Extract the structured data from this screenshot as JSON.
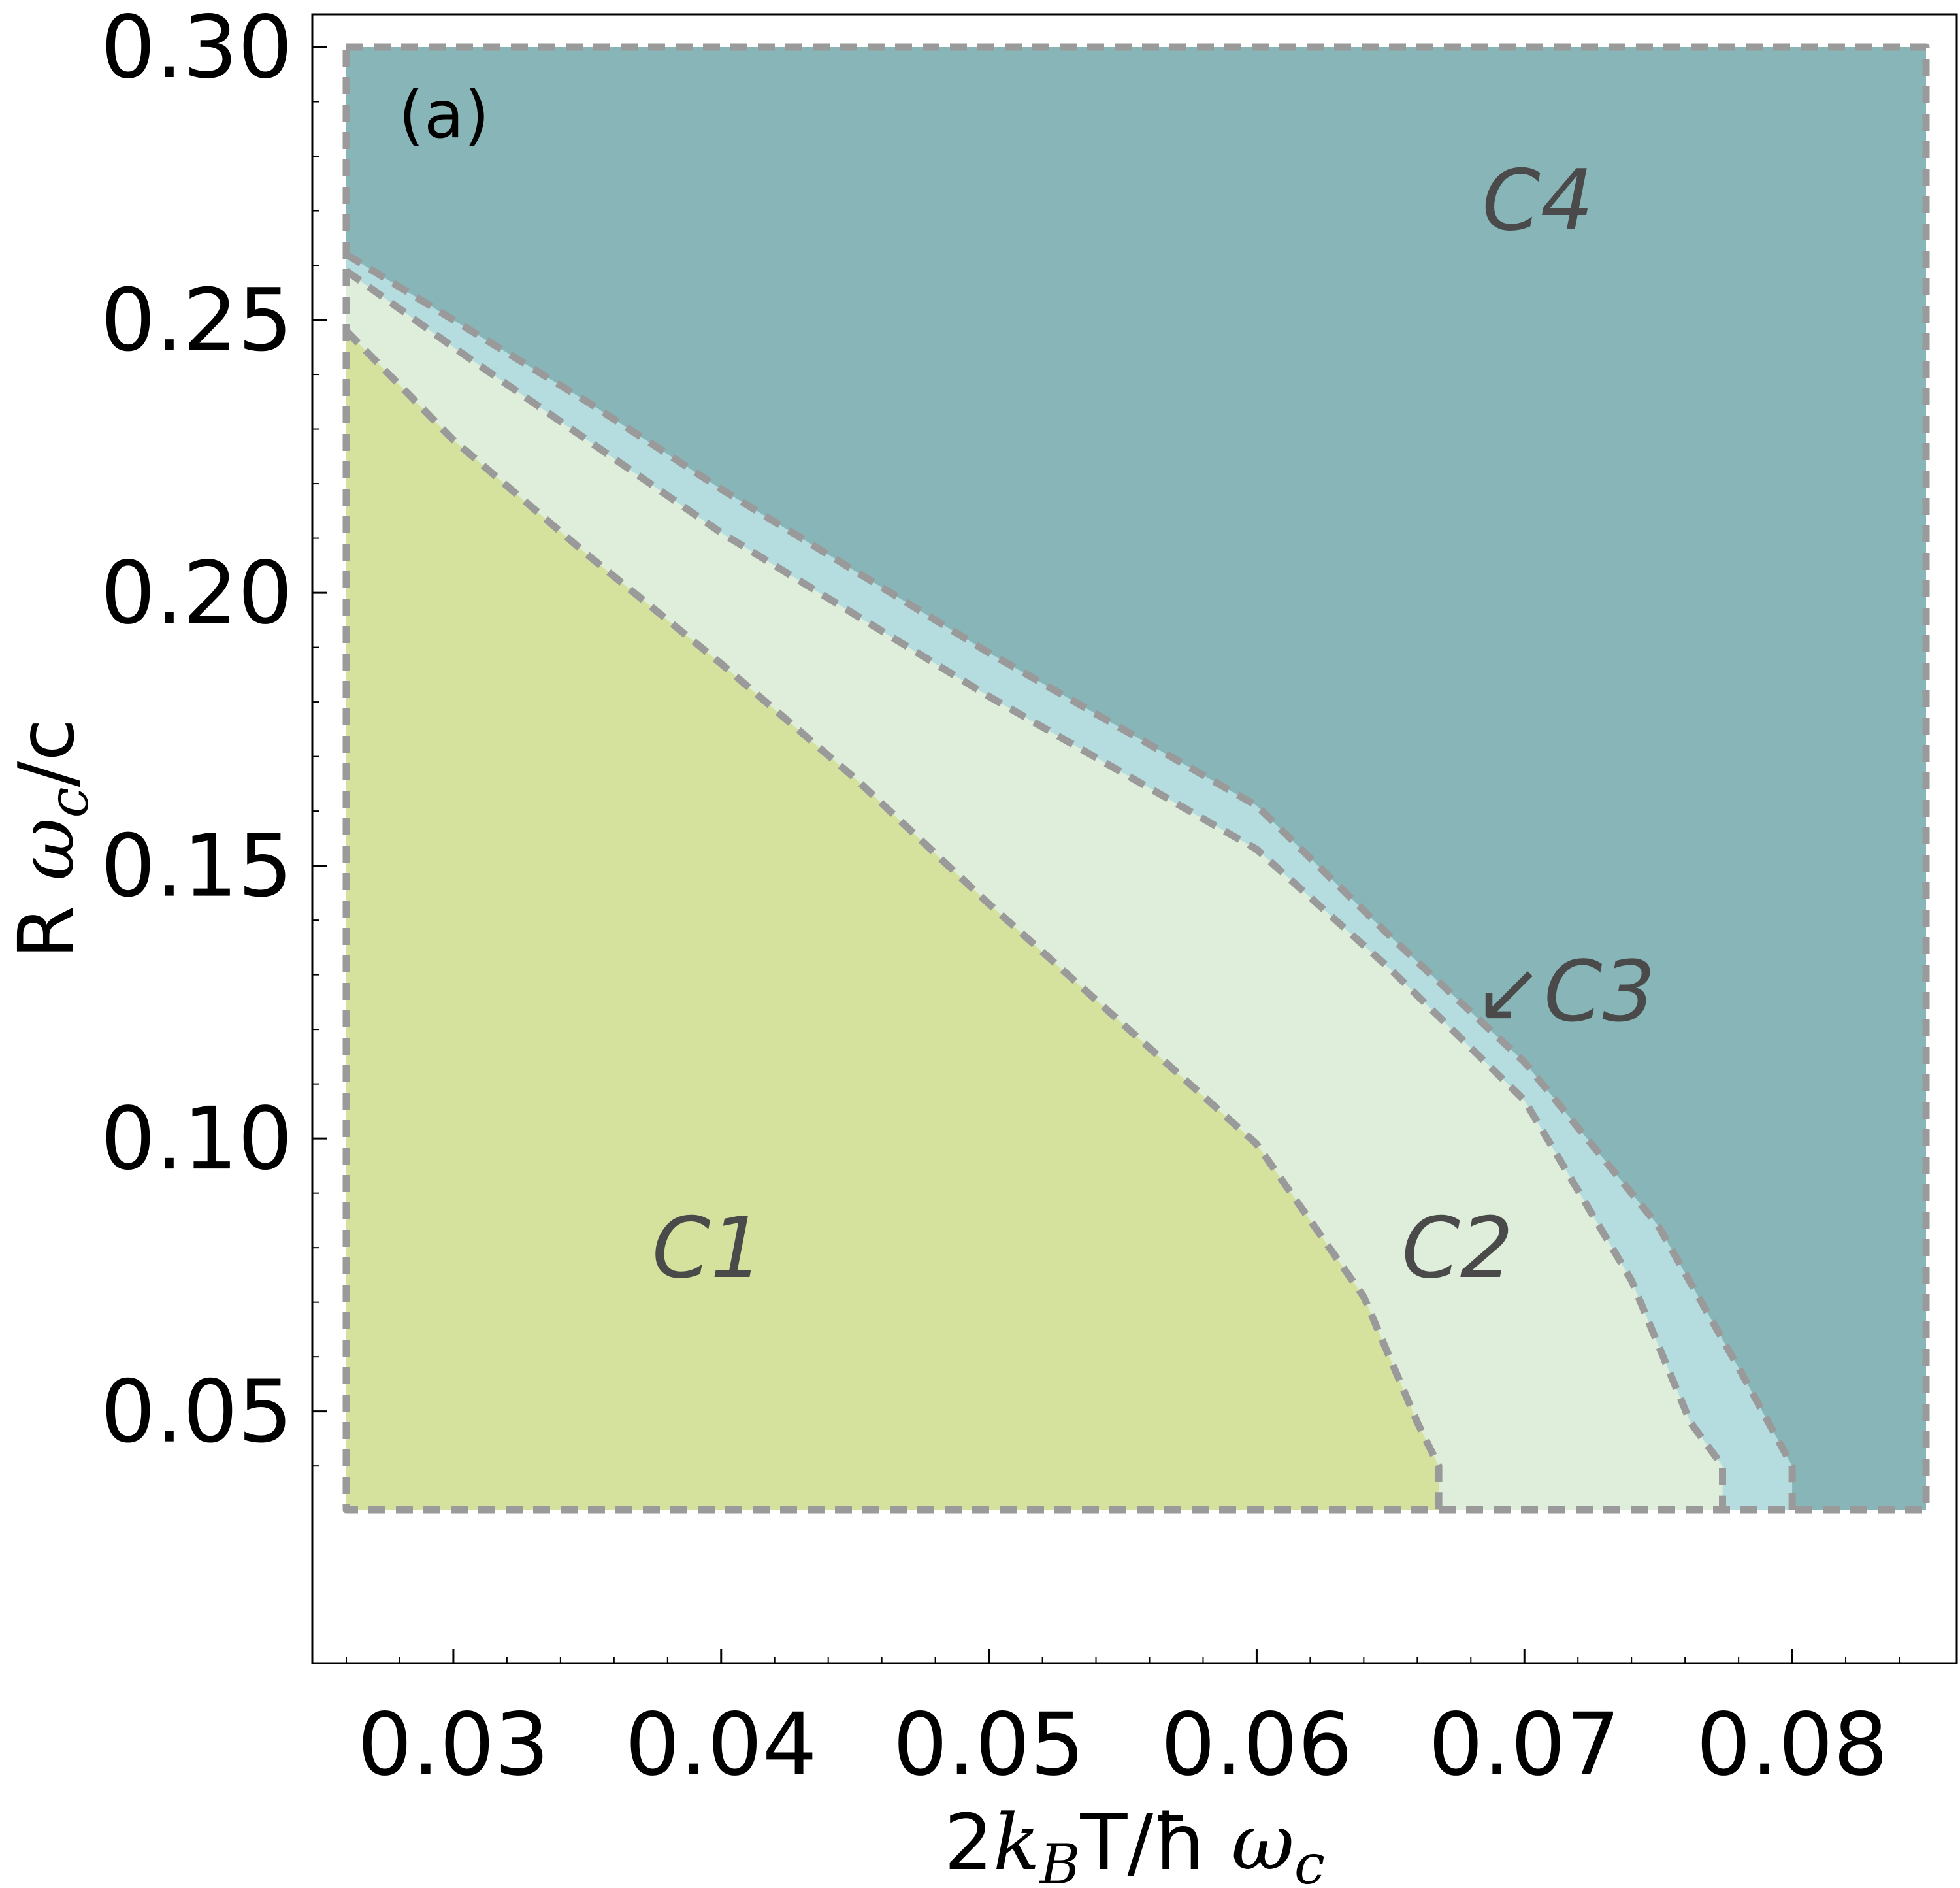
{
  "chart_data": {
    "type": "region",
    "panel_label": "(a)",
    "xlabel": "2k_B T/ħ ω_c",
    "ylabel": "R ω_c/c",
    "xlim": [
      0.026,
      0.085
    ],
    "ylim": [
      0.032,
      0.3
    ],
    "x_ticks": [
      {
        "value": 0.03,
        "label": "0.03"
      },
      {
        "value": 0.04,
        "label": "0.04"
      },
      {
        "value": 0.05,
        "label": "0.05"
      },
      {
        "value": 0.06,
        "label": "0.06"
      },
      {
        "value": 0.07,
        "label": "0.07"
      },
      {
        "value": 0.08,
        "label": "0.08"
      }
    ],
    "y_ticks": [
      {
        "value": 0.05,
        "label": "0.05"
      },
      {
        "value": 0.1,
        "label": "0.10"
      },
      {
        "value": 0.15,
        "label": "0.15"
      },
      {
        "value": 0.2,
        "label": "0.20"
      },
      {
        "value": 0.25,
        "label": "0.25"
      },
      {
        "value": 0.3,
        "label": "0.30"
      }
    ],
    "regions": [
      {
        "name": "C4",
        "color": "#88b5b7"
      },
      {
        "name": "C3",
        "color": "#b5dde0"
      },
      {
        "name": "C2",
        "color": "#deeeda"
      },
      {
        "name": "C1",
        "color": "#d4e29e"
      }
    ],
    "boundaries": {
      "C1_C2": [
        [
          0.026,
          0.248
        ],
        [
          0.03,
          0.228
        ],
        [
          0.035,
          0.207
        ],
        [
          0.04,
          0.187
        ],
        [
          0.045,
          0.166
        ],
        [
          0.05,
          0.143
        ],
        [
          0.055,
          0.121
        ],
        [
          0.06,
          0.099
        ],
        [
          0.064,
          0.071
        ],
        [
          0.066,
          0.048
        ],
        [
          0.0668,
          0.04
        ],
        [
          0.0668,
          0.032
        ]
      ],
      "C2_C3": [
        [
          0.026,
          0.259
        ],
        [
          0.03,
          0.245
        ],
        [
          0.035,
          0.228
        ],
        [
          0.04,
          0.211
        ],
        [
          0.045,
          0.196
        ],
        [
          0.05,
          0.181
        ],
        [
          0.055,
          0.167
        ],
        [
          0.06,
          0.153
        ],
        [
          0.065,
          0.131
        ],
        [
          0.07,
          0.107
        ],
        [
          0.074,
          0.074
        ],
        [
          0.0762,
          0.048
        ],
        [
          0.0774,
          0.04
        ],
        [
          0.0774,
          0.032
        ]
      ],
      "C3_C4": [
        [
          0.026,
          0.262
        ],
        [
          0.03,
          0.25
        ],
        [
          0.035,
          0.235
        ],
        [
          0.04,
          0.219
        ],
        [
          0.045,
          0.204
        ],
        [
          0.05,
          0.189
        ],
        [
          0.055,
          0.175
        ],
        [
          0.06,
          0.161
        ],
        [
          0.065,
          0.137
        ],
        [
          0.07,
          0.114
        ],
        [
          0.075,
          0.084
        ],
        [
          0.078,
          0.058
        ],
        [
          0.08,
          0.04
        ],
        [
          0.08,
          0.032
        ]
      ]
    },
    "annotations": [
      {
        "text": "C1",
        "x": 0.0395,
        "y": 0.08
      },
      {
        "text": "C2",
        "x": 0.0675,
        "y": 0.08
      },
      {
        "text": "↙C3",
        "x": 0.0715,
        "y": 0.127
      },
      {
        "text": "C4",
        "x": 0.0705,
        "y": 0.272
      }
    ],
    "grid": false,
    "legend": "none"
  }
}
